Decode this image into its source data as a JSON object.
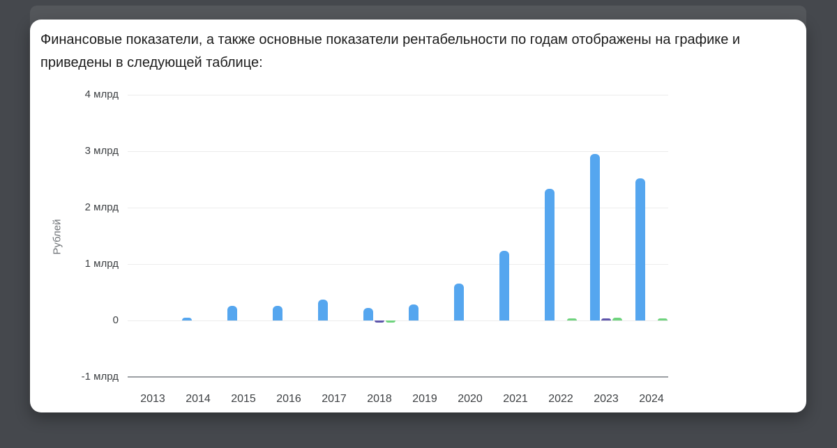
{
  "intro": {
    "line1": "Финансовые показатели, а также основные показатели рентабельности по годам отображены на графике и",
    "line2": "приведены в следующей таблице:"
  },
  "chart_data": {
    "type": "bar",
    "title": "",
    "xlabel": "",
    "ylabel": "Рублей",
    "units": "млрд рублей",
    "categories": [
      "2013",
      "2014",
      "2015",
      "2016",
      "2017",
      "2018",
      "2019",
      "2020",
      "2021",
      "2022",
      "2023",
      "2024"
    ],
    "series": [
      {
        "name": "series-blue",
        "color": "#55a6ef",
        "values": [
          0,
          0.05,
          0.26,
          0.26,
          0.37,
          0.22,
          0.29,
          0.65,
          1.23,
          2.33,
          2.95,
          2.52
        ]
      },
      {
        "name": "series-purple",
        "color": "#5e55ab",
        "values": [
          0,
          0,
          0,
          0,
          0,
          -0.02,
          0,
          0,
          0,
          0,
          0.035,
          0
        ]
      },
      {
        "name": "series-green",
        "color": "#6fd37e",
        "values": [
          0,
          0,
          0,
          0,
          0,
          -0.015,
          0,
          0,
          0,
          0.025,
          0.05,
          0.035
        ]
      }
    ],
    "yticks": [
      {
        "value": 4,
        "label": "4 млрд"
      },
      {
        "value": 3,
        "label": "3 млрд"
      },
      {
        "value": 2,
        "label": "2 млрд"
      },
      {
        "value": 1,
        "label": "1 млрд"
      },
      {
        "value": 0,
        "label": "0"
      },
      {
        "value": -1,
        "label": "-1 млрд"
      }
    ],
    "ylim": [
      -1,
      4
    ],
    "grid": true,
    "legend_position": "none"
  }
}
